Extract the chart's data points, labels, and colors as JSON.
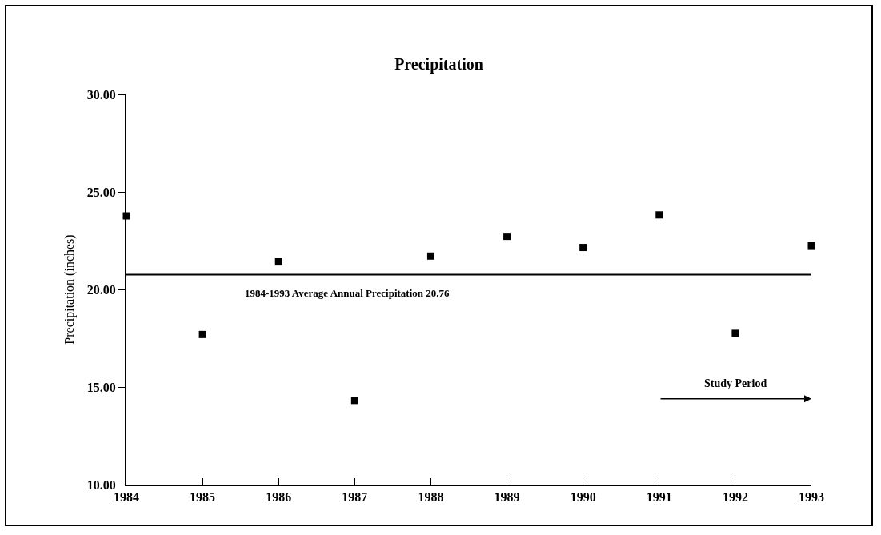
{
  "chart_data": {
    "type": "scatter",
    "title": "Precipitation",
    "ylabel": "Precipitation (inches)",
    "categories": [
      "1984",
      "1985",
      "1986",
      "1987",
      "1988",
      "1989",
      "1990",
      "1991",
      "1992",
      "1993"
    ],
    "series": [
      {
        "color": "#000000",
        "values": [
          23.77,
          17.69,
          21.45,
          14.31,
          21.71,
          22.72,
          22.15,
          23.82,
          17.75,
          22.25
        ]
      }
    ],
    "ylim": [
      10,
      30
    ],
    "yticks": [
      {
        "value": 10,
        "label": "10.00"
      },
      {
        "value": 15,
        "label": "15.00"
      },
      {
        "value": 20,
        "label": "20.00"
      },
      {
        "value": 25,
        "label": "25.00"
      },
      {
        "value": 30,
        "label": "30.00"
      }
    ],
    "ref_lines": [
      {
        "axis": "y",
        "value": 20.76,
        "label": "1984-1993 Average Annual Precipitation 20.76",
        "color": "#000000",
        "line_style": "solid"
      }
    ],
    "annotations": [
      "Study Period"
    ],
    "marker": "square",
    "grid": false
  }
}
